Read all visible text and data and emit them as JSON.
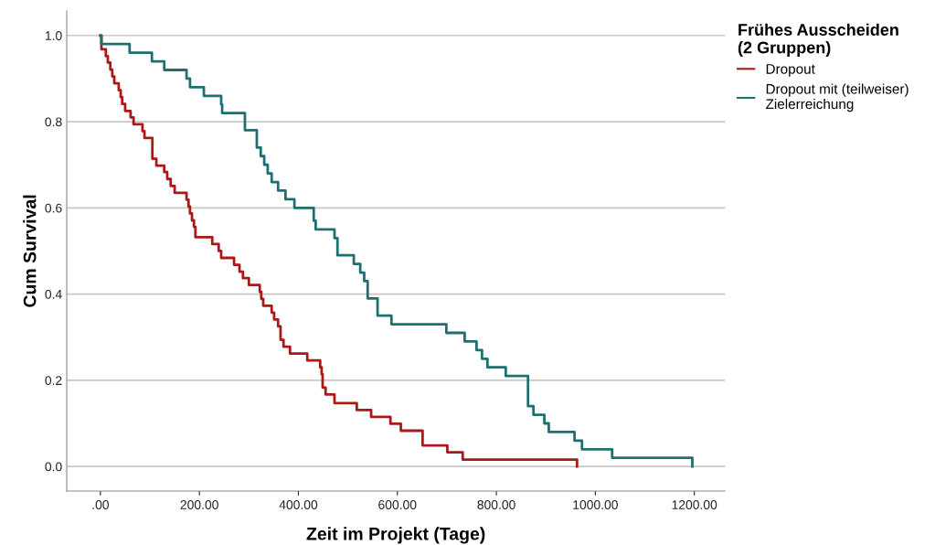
{
  "chart_data": {
    "type": "step",
    "xlabel": "Zeit im Projekt (Tage)",
    "ylabel": "Cum Survival",
    "legend_title": "Frühes Ausscheiden\n(2 Gruppen)",
    "series": [
      {
        "name": "Dropout",
        "color": "#aa1818",
        "x": [
          0,
          2,
          11,
          15,
          20,
          24,
          28,
          37,
          41,
          44,
          50,
          61,
          67,
          85,
          89,
          105,
          113,
          129,
          135,
          142,
          150,
          174,
          178,
          181,
          185,
          189,
          192,
          226,
          239,
          244,
          270,
          281,
          288,
          300,
          322,
          325,
          329,
          346,
          351,
          359,
          364,
          370,
          383,
          418,
          444,
          447,
          449,
          455,
          473,
          518,
          547,
          586,
          607,
          651,
          701,
          732,
          963
        ],
        "values": [
          1.0,
          0.968,
          0.952,
          0.937,
          0.921,
          0.905,
          0.889,
          0.873,
          0.857,
          0.841,
          0.825,
          0.81,
          0.794,
          0.778,
          0.762,
          0.714,
          0.698,
          0.683,
          0.667,
          0.651,
          0.635,
          0.619,
          0.603,
          0.587,
          0.571,
          0.556,
          0.532,
          0.516,
          0.5,
          0.484,
          0.468,
          0.452,
          0.437,
          0.421,
          0.405,
          0.389,
          0.373,
          0.357,
          0.341,
          0.325,
          0.294,
          0.278,
          0.262,
          0.246,
          0.23,
          0.214,
          0.183,
          0.167,
          0.147,
          0.131,
          0.115,
          0.099,
          0.083,
          0.049,
          0.033,
          0.016,
          0.0
        ]
      },
      {
        "name": "Dropout mit (teilweiser)\nZielerreichung",
        "color": "#1e7070",
        "x": [
          0,
          2,
          59,
          104,
          129,
          174,
          181,
          209,
          244,
          246,
          292,
          316,
          324,
          331,
          338,
          346,
          359,
          374,
          392,
          431,
          435,
          473,
          479,
          512,
          525,
          533,
          540,
          560,
          588,
          699,
          736,
          760,
          771,
          782,
          819,
          864,
          875,
          897,
          906,
          958,
          973,
          1034,
          1196
        ],
        "values": [
          1.0,
          0.98,
          0.96,
          0.94,
          0.92,
          0.9,
          0.88,
          0.86,
          0.84,
          0.82,
          0.78,
          0.74,
          0.72,
          0.7,
          0.68,
          0.66,
          0.64,
          0.62,
          0.6,
          0.57,
          0.55,
          0.53,
          0.49,
          0.47,
          0.45,
          0.43,
          0.39,
          0.35,
          0.33,
          0.31,
          0.29,
          0.27,
          0.25,
          0.23,
          0.21,
          0.14,
          0.12,
          0.1,
          0.08,
          0.06,
          0.04,
          0.02,
          0.0
        ]
      }
    ],
    "xlim": [
      -68,
      1262
    ],
    "ylim": [
      -0.057,
      1.057
    ],
    "xticks": [
      {
        "value": 0,
        "label": ".00"
      },
      {
        "value": 200,
        "label": "200.00"
      },
      {
        "value": 400,
        "label": "400.00"
      },
      {
        "value": 600,
        "label": "600.00"
      },
      {
        "value": 800,
        "label": "800.00"
      },
      {
        "value": 1000,
        "label": "1000.00"
      },
      {
        "value": 1200,
        "label": "1200.00"
      }
    ],
    "yticks": [
      {
        "value": 0,
        "label": "0.0"
      },
      {
        "value": 0.2,
        "label": "0.2"
      },
      {
        "value": 0.4,
        "label": "0.4"
      },
      {
        "value": 0.6,
        "label": "0.6"
      },
      {
        "value": 0.8,
        "label": "0.8"
      },
      {
        "value": 1.0,
        "label": "1.0"
      }
    ],
    "grid": "y",
    "legend": "top right"
  }
}
